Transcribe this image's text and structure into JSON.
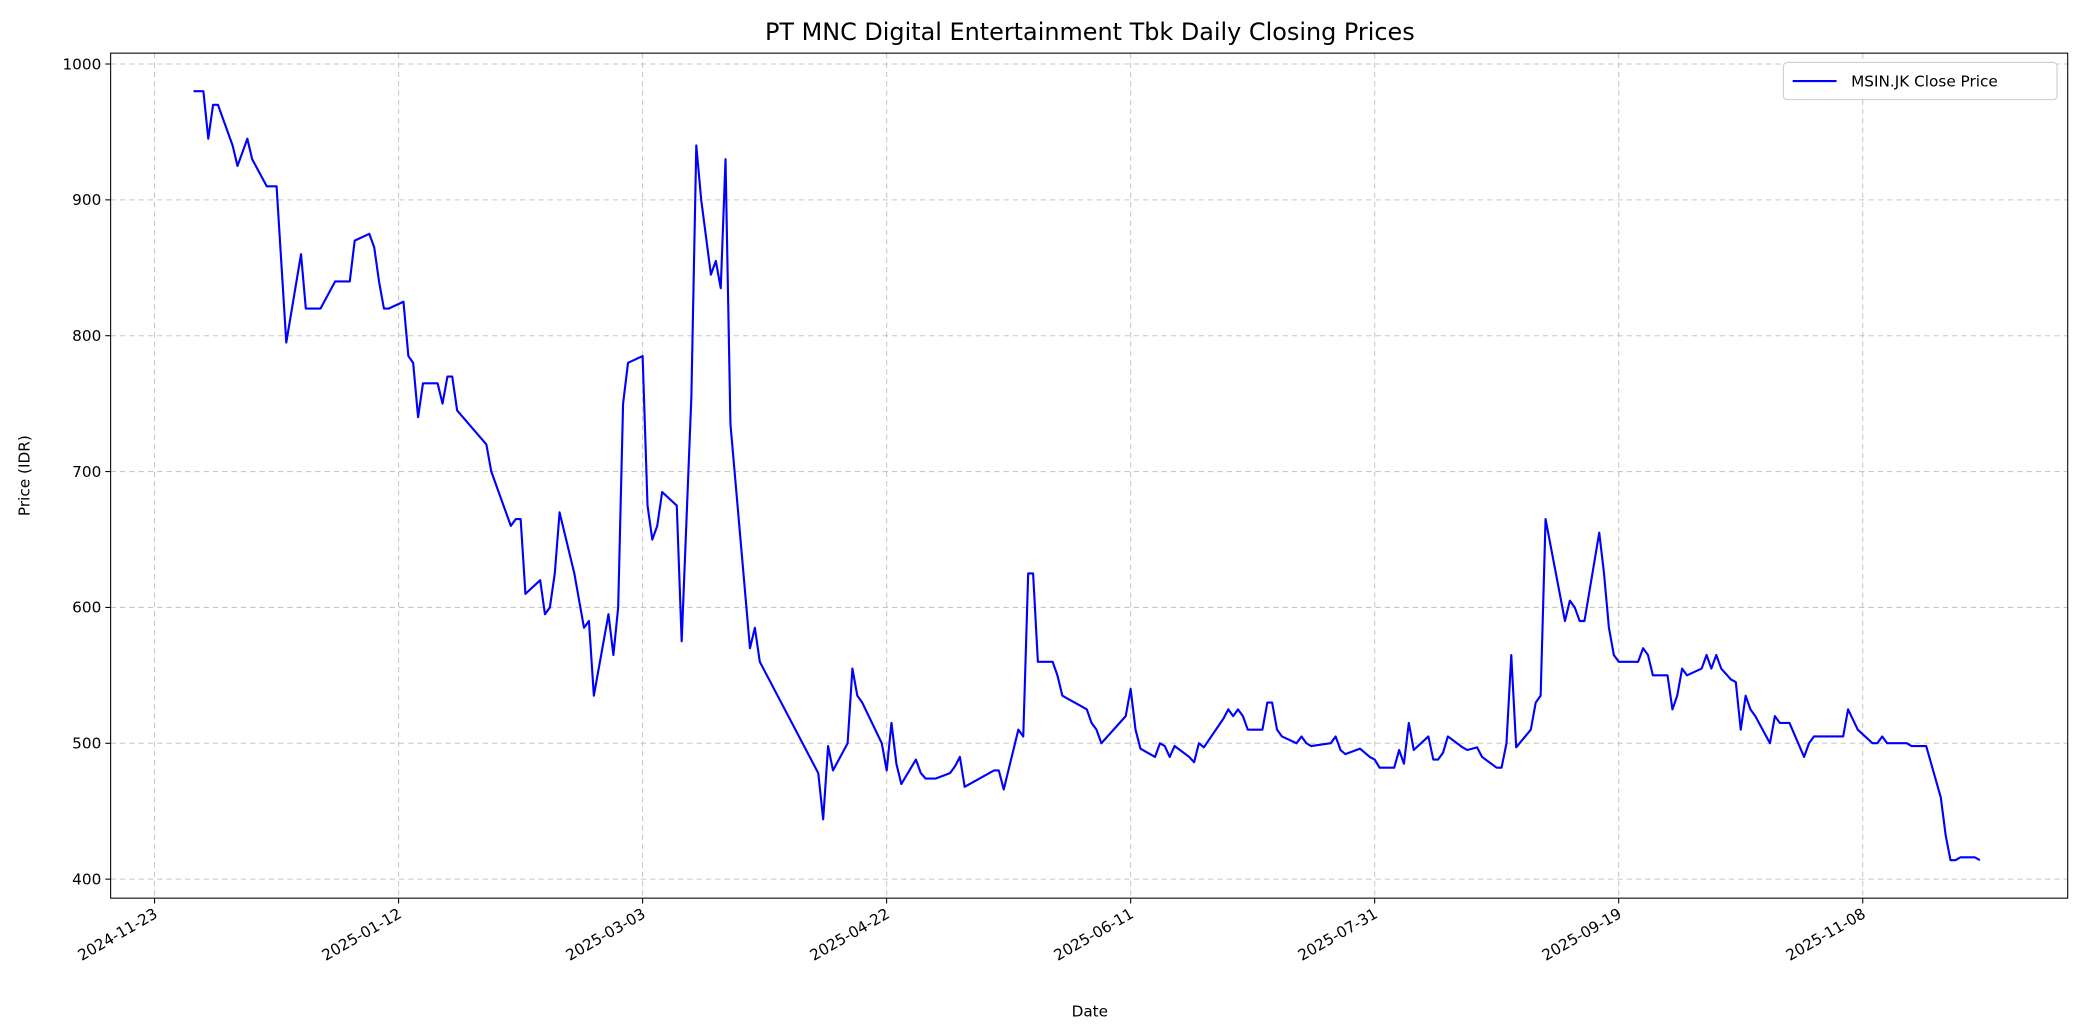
{
  "chart_data": {
    "type": "line",
    "title": "PT MNC Digital Entertainment Tbk Daily Closing Prices",
    "xlabel": "Date",
    "ylabel": "Price (IDR)",
    "x_ticks": [
      "2024-11-23",
      "2025-01-12",
      "2025-03-03",
      "2025-04-22",
      "2025-06-11",
      "2025-07-31",
      "2025-09-19",
      "2025-11-08"
    ],
    "y_ticks": [
      400,
      500,
      600,
      700,
      800,
      900,
      1000
    ],
    "xlim": [
      "2024-11-14",
      "2025-12-20"
    ],
    "ylim": [
      386,
      1008
    ],
    "grid": true,
    "legend_placement": "top-right",
    "series": [
      {
        "name": "MSIN.JK Close Price",
        "color": "#0000ff",
        "points": [
          [
            "2024-12-01",
            980
          ],
          [
            "2024-12-03",
            980
          ],
          [
            "2024-12-04",
            945
          ],
          [
            "2024-12-05",
            970
          ],
          [
            "2024-12-06",
            970
          ],
          [
            "2024-12-09",
            940
          ],
          [
            "2024-12-10",
            925
          ],
          [
            "2024-12-12",
            945
          ],
          [
            "2024-12-13",
            930
          ],
          [
            "2024-12-16",
            910
          ],
          [
            "2024-12-18",
            910
          ],
          [
            "2024-12-20",
            795
          ],
          [
            "2024-12-23",
            860
          ],
          [
            "2024-12-24",
            820
          ],
          [
            "2024-12-27",
            820
          ],
          [
            "2024-12-30",
            840
          ],
          [
            "2025-01-02",
            840
          ],
          [
            "2025-01-03",
            870
          ],
          [
            "2025-01-06",
            875
          ],
          [
            "2025-01-07",
            865
          ],
          [
            "2025-01-08",
            840
          ],
          [
            "2025-01-09",
            820
          ],
          [
            "2025-01-10",
            820
          ],
          [
            "2025-01-13",
            825
          ],
          [
            "2025-01-14",
            785
          ],
          [
            "2025-01-15",
            780
          ],
          [
            "2025-01-16",
            740
          ],
          [
            "2025-01-17",
            765
          ],
          [
            "2025-01-20",
            765
          ],
          [
            "2025-01-21",
            750
          ],
          [
            "2025-01-22",
            770
          ],
          [
            "2025-01-23",
            770
          ],
          [
            "2025-01-24",
            745
          ],
          [
            "2025-01-30",
            720
          ],
          [
            "2025-01-31",
            700
          ],
          [
            "2025-02-04",
            660
          ],
          [
            "2025-02-05",
            665
          ],
          [
            "2025-02-06",
            665
          ],
          [
            "2025-02-07",
            610
          ],
          [
            "2025-02-10",
            620
          ],
          [
            "2025-02-11",
            595
          ],
          [
            "2025-02-12",
            600
          ],
          [
            "2025-02-13",
            625
          ],
          [
            "2025-02-14",
            670
          ],
          [
            "2025-02-17",
            625
          ],
          [
            "2025-02-19",
            585
          ],
          [
            "2025-02-20",
            590
          ],
          [
            "2025-02-21",
            535
          ],
          [
            "2025-02-24",
            595
          ],
          [
            "2025-02-25",
            565
          ],
          [
            "2025-02-26",
            600
          ],
          [
            "2025-02-27",
            750
          ],
          [
            "2025-02-28",
            780
          ],
          [
            "2025-03-03",
            785
          ],
          [
            "2025-03-04",
            675
          ],
          [
            "2025-03-05",
            650
          ],
          [
            "2025-03-06",
            660
          ],
          [
            "2025-03-07",
            685
          ],
          [
            "2025-03-10",
            675
          ],
          [
            "2025-03-11",
            575
          ],
          [
            "2025-03-13",
            755
          ],
          [
            "2025-03-14",
            940
          ],
          [
            "2025-03-15",
            900
          ],
          [
            "2025-03-17",
            845
          ],
          [
            "2025-03-18",
            855
          ],
          [
            "2025-03-19",
            835
          ],
          [
            "2025-03-20",
            930
          ],
          [
            "2025-03-21",
            735
          ],
          [
            "2025-03-25",
            570
          ],
          [
            "2025-03-26",
            585
          ],
          [
            "2025-03-27",
            560
          ],
          [
            "2025-04-08",
            478
          ],
          [
            "2025-04-09",
            444
          ],
          [
            "2025-04-10",
            498
          ],
          [
            "2025-04-11",
            480
          ],
          [
            "2025-04-14",
            500
          ],
          [
            "2025-04-15",
            555
          ],
          [
            "2025-04-16",
            535
          ],
          [
            "2025-04-17",
            530
          ],
          [
            "2025-04-21",
            500
          ],
          [
            "2025-04-22",
            480
          ],
          [
            "2025-04-23",
            515
          ],
          [
            "2025-04-24",
            485
          ],
          [
            "2025-04-25",
            470
          ],
          [
            "2025-04-28",
            488
          ],
          [
            "2025-04-29",
            478
          ],
          [
            "2025-04-30",
            474
          ],
          [
            "2025-05-02",
            474
          ],
          [
            "2025-05-05",
            478
          ],
          [
            "2025-05-06",
            483
          ],
          [
            "2025-05-07",
            490
          ],
          [
            "2025-05-08",
            468
          ],
          [
            "2025-05-14",
            480
          ],
          [
            "2025-05-15",
            480
          ],
          [
            "2025-05-16",
            466
          ],
          [
            "2025-05-19",
            510
          ],
          [
            "2025-05-20",
            505
          ],
          [
            "2025-05-21",
            625
          ],
          [
            "2025-05-22",
            625
          ],
          [
            "2025-05-23",
            560
          ],
          [
            "2025-05-26",
            560
          ],
          [
            "2025-05-27",
            550
          ],
          [
            "2025-05-28",
            535
          ],
          [
            "2025-06-02",
            525
          ],
          [
            "2025-06-03",
            515
          ],
          [
            "2025-06-04",
            510
          ],
          [
            "2025-06-05",
            500
          ],
          [
            "2025-06-10",
            520
          ],
          [
            "2025-06-11",
            540
          ],
          [
            "2025-06-12",
            510
          ],
          [
            "2025-06-13",
            496
          ],
          [
            "2025-06-16",
            490
          ],
          [
            "2025-06-17",
            500
          ],
          [
            "2025-06-18",
            498
          ],
          [
            "2025-06-19",
            490
          ],
          [
            "2025-06-20",
            498
          ],
          [
            "2025-06-23",
            490
          ],
          [
            "2025-06-24",
            486
          ],
          [
            "2025-06-25",
            500
          ],
          [
            "2025-06-26",
            497
          ],
          [
            "2025-06-30",
            518
          ],
          [
            "2025-07-01",
            525
          ],
          [
            "2025-07-02",
            520
          ],
          [
            "2025-07-03",
            525
          ],
          [
            "2025-07-04",
            520
          ],
          [
            "2025-07-05",
            510
          ],
          [
            "2025-07-08",
            510
          ],
          [
            "2025-07-09",
            530
          ],
          [
            "2025-07-10",
            530
          ],
          [
            "2025-07-11",
            510
          ],
          [
            "2025-07-12",
            505
          ],
          [
            "2025-07-15",
            500
          ],
          [
            "2025-07-16",
            505
          ],
          [
            "2025-07-17",
            500
          ],
          [
            "2025-07-18",
            498
          ],
          [
            "2025-07-22",
            500
          ],
          [
            "2025-07-23",
            505
          ],
          [
            "2025-07-24",
            495
          ],
          [
            "2025-07-25",
            492
          ],
          [
            "2025-07-28",
            496
          ],
          [
            "2025-07-30",
            490
          ],
          [
            "2025-07-31",
            488
          ],
          [
            "2025-08-01",
            482
          ],
          [
            "2025-08-04",
            482
          ],
          [
            "2025-08-05",
            495
          ],
          [
            "2025-08-06",
            485
          ],
          [
            "2025-08-07",
            515
          ],
          [
            "2025-08-08",
            495
          ],
          [
            "2025-08-11",
            505
          ],
          [
            "2025-08-12",
            488
          ],
          [
            "2025-08-13",
            488
          ],
          [
            "2025-08-14",
            493
          ],
          [
            "2025-08-15",
            505
          ],
          [
            "2025-08-18",
            497
          ],
          [
            "2025-08-19",
            495
          ],
          [
            "2025-08-21",
            497
          ],
          [
            "2025-08-22",
            490
          ],
          [
            "2025-08-25",
            482
          ],
          [
            "2025-08-26",
            482
          ],
          [
            "2025-08-27",
            500
          ],
          [
            "2025-08-28",
            565
          ],
          [
            "2025-08-29",
            497
          ],
          [
            "2025-09-01",
            510
          ],
          [
            "2025-09-02",
            530
          ],
          [
            "2025-09-03",
            535
          ],
          [
            "2025-09-04",
            665
          ],
          [
            "2025-09-08",
            590
          ],
          [
            "2025-09-09",
            605
          ],
          [
            "2025-09-10",
            600
          ],
          [
            "2025-09-11",
            590
          ],
          [
            "2025-09-12",
            590
          ],
          [
            "2025-09-15",
            655
          ],
          [
            "2025-09-16",
            625
          ],
          [
            "2025-09-17",
            585
          ],
          [
            "2025-09-18",
            565
          ],
          [
            "2025-09-19",
            560
          ],
          [
            "2025-09-23",
            560
          ],
          [
            "2025-09-24",
            570
          ],
          [
            "2025-09-25",
            565
          ],
          [
            "2025-09-26",
            550
          ],
          [
            "2025-09-29",
            550
          ],
          [
            "2025-09-30",
            525
          ],
          [
            "2025-10-01",
            535
          ],
          [
            "2025-10-02",
            555
          ],
          [
            "2025-10-03",
            550
          ],
          [
            "2025-10-06",
            555
          ],
          [
            "2025-10-07",
            565
          ],
          [
            "2025-10-08",
            555
          ],
          [
            "2025-10-09",
            565
          ],
          [
            "2025-10-10",
            555
          ],
          [
            "2025-10-12",
            547
          ],
          [
            "2025-10-13",
            545
          ],
          [
            "2025-10-14",
            510
          ],
          [
            "2025-10-15",
            535
          ],
          [
            "2025-10-16",
            525
          ],
          [
            "2025-10-17",
            520
          ],
          [
            "2025-10-20",
            500
          ],
          [
            "2025-10-21",
            520
          ],
          [
            "2025-10-22",
            515
          ],
          [
            "2025-10-24",
            515
          ],
          [
            "2025-10-27",
            490
          ],
          [
            "2025-10-28",
            500
          ],
          [
            "2025-10-29",
            505
          ],
          [
            "2025-11-04",
            505
          ],
          [
            "2025-11-05",
            525
          ],
          [
            "2025-11-07",
            510
          ],
          [
            "2025-11-10",
            500
          ],
          [
            "2025-11-11",
            500
          ],
          [
            "2025-11-12",
            505
          ],
          [
            "2025-11-13",
            500
          ],
          [
            "2025-11-17",
            500
          ],
          [
            "2025-11-18",
            498
          ],
          [
            "2025-11-21",
            498
          ],
          [
            "2025-11-24",
            460
          ],
          [
            "2025-11-25",
            432
          ],
          [
            "2025-11-26",
            414
          ],
          [
            "2025-11-27",
            414
          ],
          [
            "2025-11-28",
            416
          ],
          [
            "2025-12-01",
            416
          ],
          [
            "2025-12-02",
            414
          ]
        ]
      }
    ]
  }
}
